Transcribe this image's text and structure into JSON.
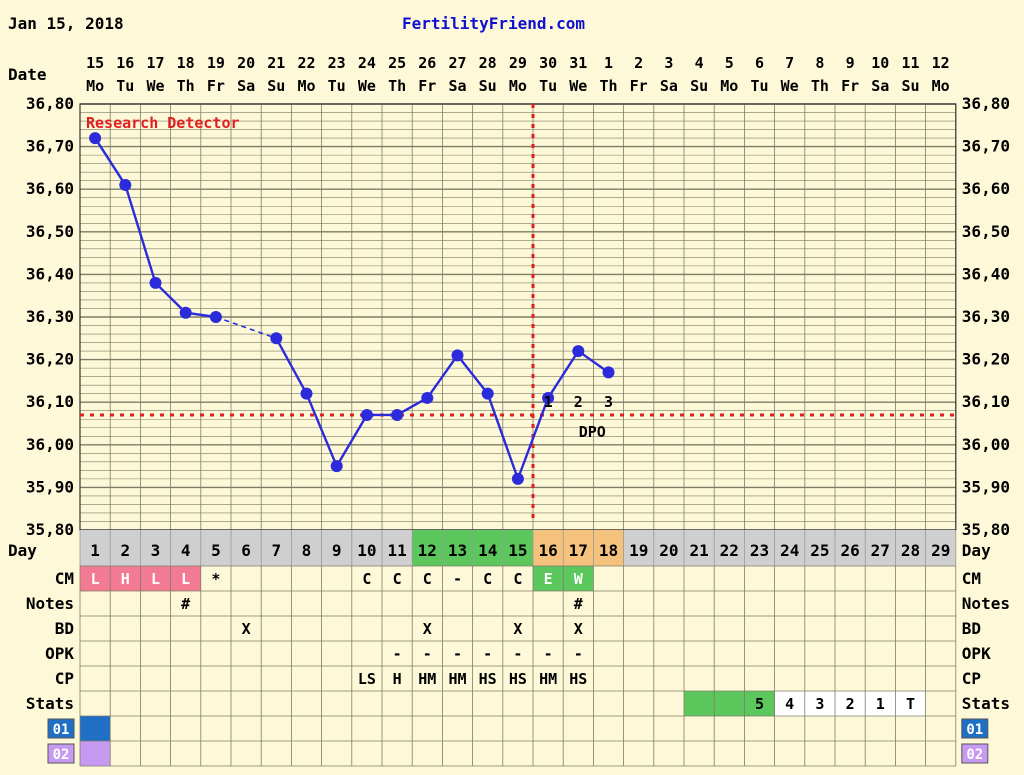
{
  "header": {
    "date": "Jan 15, 2018",
    "site": "FertilityFriend.com"
  },
  "labels": {
    "date": "Date",
    "day": "Day",
    "detector": "Research Detector",
    "dpo": "DPO"
  },
  "calendar": {
    "dates": [
      "15",
      "16",
      "17",
      "18",
      "19",
      "20",
      "21",
      "22",
      "23",
      "24",
      "25",
      "26",
      "27",
      "28",
      "29",
      "30",
      "31",
      "1",
      "2",
      "3",
      "4",
      "5",
      "6",
      "7",
      "8",
      "9",
      "10",
      "11",
      "12"
    ],
    "weekdays": [
      "Mo",
      "Tu",
      "We",
      "Th",
      "Fr",
      "Sa",
      "Su",
      "Mo",
      "Tu",
      "We",
      "Th",
      "Fr",
      "Sa",
      "Su",
      "Mo",
      "Tu",
      "We",
      "Th",
      "Fr",
      "Sa",
      "Su",
      "Mo",
      "Tu",
      "We",
      "Th",
      "Fr",
      "Sa",
      "Su",
      "Mo"
    ],
    "cycle_days": [
      "1",
      "2",
      "3",
      "4",
      "5",
      "6",
      "7",
      "8",
      "9",
      "10",
      "11",
      "12",
      "13",
      "14",
      "15",
      "16",
      "17",
      "18",
      "19",
      "20",
      "21",
      "22",
      "23",
      "24",
      "25",
      "26",
      "27",
      "28",
      "29"
    ]
  },
  "chart_data": {
    "type": "line",
    "yticks": [
      "36,80",
      "36,70",
      "36,60",
      "36,50",
      "36,40",
      "36,30",
      "36,20",
      "36,10",
      "36,00",
      "35,90",
      "35,80"
    ],
    "ylim": [
      35.8,
      36.8
    ],
    "temps": [
      {
        "day": 1,
        "t": 36.72
      },
      {
        "day": 2,
        "t": 36.61
      },
      {
        "day": 3,
        "t": 36.38
      },
      {
        "day": 4,
        "t": 36.31
      },
      {
        "day": 5,
        "t": 36.3
      },
      {
        "day": 7,
        "t": 36.25
      },
      {
        "day": 8,
        "t": 36.12
      },
      {
        "day": 9,
        "t": 35.95
      },
      {
        "day": 10,
        "t": 36.07
      },
      {
        "day": 11,
        "t": 36.07
      },
      {
        "day": 12,
        "t": 36.11
      },
      {
        "day": 13,
        "t": 36.21
      },
      {
        "day": 14,
        "t": 36.12
      },
      {
        "day": 15,
        "t": 35.92
      },
      {
        "day": 16,
        "t": 36.11
      },
      {
        "day": 17,
        "t": 36.22
      },
      {
        "day": 18,
        "t": 36.17
      }
    ],
    "coverline": 36.07,
    "ovulation_day": 15,
    "dpo_marks": [
      {
        "day": 16,
        "label": "1"
      },
      {
        "day": 17,
        "label": "2"
      },
      {
        "day": 18,
        "label": "3"
      }
    ]
  },
  "rows": {
    "cm": {
      "label": "CM",
      "values": {
        "1": "L",
        "2": "H",
        "3": "L",
        "4": "L",
        "5": "*",
        "10": "C",
        "11": "C",
        "12": "C",
        "13": "-",
        "14": "C",
        "15": "C",
        "16": "E",
        "17": "W"
      }
    },
    "notes": {
      "label": "Notes",
      "values": {
        "4": "#",
        "17": "#"
      }
    },
    "bd": {
      "label": "BD",
      "values": {
        "6": "X",
        "12": "X",
        "15": "X",
        "17": "X"
      }
    },
    "opk": {
      "label": "OPK",
      "values": {
        "11": "-",
        "12": "-",
        "13": "-",
        "14": "-",
        "15": "-",
        "16": "-",
        "17": "-"
      }
    },
    "cp": {
      "label": "CP",
      "values": {
        "10": "LS",
        "11": "H",
        "12": "HM",
        "13": "HM",
        "14": "HS",
        "15": "HS",
        "16": "HM",
        "17": "HS"
      }
    },
    "stats": {
      "label": "Stats",
      "values": {
        "23": "5",
        "24": "4",
        "25": "3",
        "26": "2",
        "27": "1",
        "28": "T"
      }
    },
    "r01": {
      "label": "01"
    },
    "r02": {
      "label": "02"
    }
  },
  "colors": {
    "background": "#fdf8d8",
    "grid": "#7d7d66",
    "line": "#2b2bdb",
    "dashed": "#e02020",
    "cm_pink": "#f27a93",
    "fertile_green": "#5cc75c",
    "luteal_orange": "#f5c27e",
    "daybar_gray": "#cfcfcf",
    "site_blue": "#1010d0",
    "badge_01": "#1f6fc5",
    "badge_02": "#c79af2"
  }
}
